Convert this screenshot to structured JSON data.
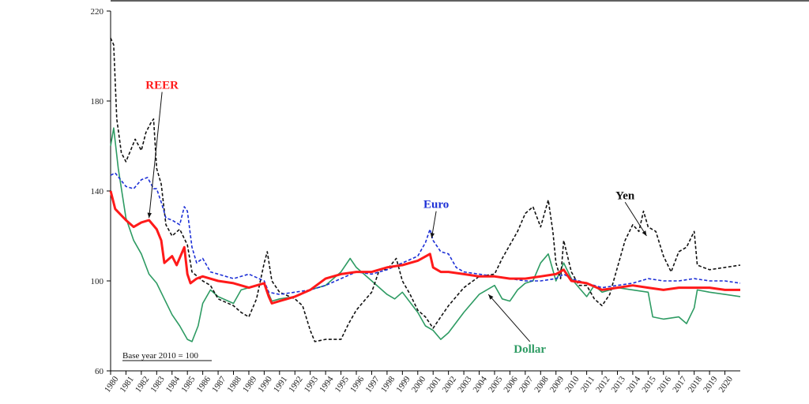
{
  "chart_data": {
    "type": "line",
    "ylim": [
      60,
      220
    ],
    "yticks": [
      60,
      100,
      140,
      180,
      220
    ],
    "xlim": [
      1980,
      2021
    ],
    "xticks": [
      "1980",
      "1981",
      "1982",
      "1983",
      "1984",
      "1985",
      "1986",
      "1987",
      "1988",
      "1989",
      "1990",
      "1991",
      "1992",
      "1993",
      "1994",
      "1995",
      "1996",
      "1997",
      "1998",
      "1999",
      "2000",
      "2001",
      "2002",
      "2003",
      "2004",
      "2005",
      "2006",
      "2007",
      "2008",
      "2009",
      "2010",
      "2011",
      "2012",
      "2013",
      "2014",
      "2015",
      "2016",
      "2017",
      "2018",
      "2019",
      "2020"
    ],
    "note": "Base year  2010 = 100",
    "series": [
      {
        "name": "REER",
        "color": "#ff1a1a",
        "style": "solid",
        "points": [
          [
            1980,
            140
          ],
          [
            1980.3,
            132
          ],
          [
            1981,
            127
          ],
          [
            1981.5,
            124
          ],
          [
            1982,
            126
          ],
          [
            1982.5,
            127
          ],
          [
            1983,
            123
          ],
          [
            1983.3,
            118
          ],
          [
            1983.5,
            108
          ],
          [
            1984,
            111
          ],
          [
            1984.3,
            107
          ],
          [
            1984.8,
            115
          ],
          [
            1985,
            103
          ],
          [
            1985.2,
            99
          ],
          [
            1985.6,
            101
          ],
          [
            1986,
            102
          ],
          [
            1987,
            100
          ],
          [
            1988,
            99
          ],
          [
            1989,
            97
          ],
          [
            1990,
            99
          ],
          [
            1990.3,
            93
          ],
          [
            1990.5,
            90
          ],
          [
            1991,
            91
          ],
          [
            1992,
            93
          ],
          [
            1993,
            96
          ],
          [
            1994,
            101
          ],
          [
            1995,
            103
          ],
          [
            1996,
            104
          ],
          [
            1997,
            104
          ],
          [
            1998,
            106
          ],
          [
            1999,
            107
          ],
          [
            2000,
            109
          ],
          [
            2000.8,
            112
          ],
          [
            2001,
            106
          ],
          [
            2001.5,
            104
          ],
          [
            2002,
            104
          ],
          [
            2003,
            103
          ],
          [
            2004,
            102
          ],
          [
            2005,
            102
          ],
          [
            2006,
            101
          ],
          [
            2007,
            101
          ],
          [
            2008,
            102
          ],
          [
            2009,
            103
          ],
          [
            2009.5,
            105
          ],
          [
            2010,
            100
          ],
          [
            2011,
            99
          ],
          [
            2012,
            96
          ],
          [
            2013,
            97
          ],
          [
            2014,
            98
          ],
          [
            2015,
            97
          ],
          [
            2016,
            96
          ],
          [
            2017,
            97
          ],
          [
            2018,
            97
          ],
          [
            2019,
            97
          ],
          [
            2020,
            96
          ],
          [
            2021,
            96
          ]
        ]
      },
      {
        "name": "Euro",
        "color": "#1c2fd6",
        "style": "dashed",
        "points": [
          [
            1980,
            147
          ],
          [
            1980.3,
            148
          ],
          [
            1981,
            142
          ],
          [
            1981.5,
            141
          ],
          [
            1982,
            145
          ],
          [
            1982.4,
            146
          ],
          [
            1982.8,
            141
          ],
          [
            1983,
            141
          ],
          [
            1983.3,
            135
          ],
          [
            1983.6,
            128
          ],
          [
            1984,
            127
          ],
          [
            1984.5,
            125
          ],
          [
            1984.8,
            133
          ],
          [
            1985,
            131
          ],
          [
            1985.3,
            115
          ],
          [
            1985.6,
            108
          ],
          [
            1986,
            110
          ],
          [
            1986.5,
            104
          ],
          [
            1987,
            103
          ],
          [
            1988,
            101
          ],
          [
            1989,
            103
          ],
          [
            1990,
            100
          ],
          [
            1990.3,
            95
          ],
          [
            1991,
            94
          ],
          [
            1992,
            95
          ],
          [
            1993,
            96
          ],
          [
            1994,
            98
          ],
          [
            1995,
            101
          ],
          [
            1996,
            104
          ],
          [
            1997,
            103
          ],
          [
            1998,
            105
          ],
          [
            1999,
            108
          ],
          [
            2000,
            111
          ],
          [
            2000.5,
            117
          ],
          [
            2000.8,
            123
          ],
          [
            2001,
            118
          ],
          [
            2001.5,
            113
          ],
          [
            2002,
            112
          ],
          [
            2002.5,
            106
          ],
          [
            2003,
            104
          ],
          [
            2004,
            103
          ],
          [
            2005,
            102
          ],
          [
            2006,
            101
          ],
          [
            2007,
            100
          ],
          [
            2008,
            100
          ],
          [
            2009,
            101
          ],
          [
            2009.5,
            103
          ],
          [
            2010,
            101
          ],
          [
            2011,
            99
          ],
          [
            2012,
            97
          ],
          [
            2013,
            98
          ],
          [
            2014,
            99
          ],
          [
            2015,
            101
          ],
          [
            2016,
            100
          ],
          [
            2017,
            100
          ],
          [
            2018,
            101
          ],
          [
            2019,
            100
          ],
          [
            2020,
            100
          ],
          [
            2021,
            99
          ]
        ]
      },
      {
        "name": "Dollar",
        "color": "#2e9b63",
        "style": "solid",
        "points": [
          [
            1980,
            160
          ],
          [
            1980.2,
            168
          ],
          [
            1980.5,
            150
          ],
          [
            1981,
            128
          ],
          [
            1981.5,
            118
          ],
          [
            1982,
            112
          ],
          [
            1982.5,
            103
          ],
          [
            1983,
            99
          ],
          [
            1983.5,
            92
          ],
          [
            1984,
            85
          ],
          [
            1984.5,
            80
          ],
          [
            1985,
            74
          ],
          [
            1985.3,
            73
          ],
          [
            1985.7,
            80
          ],
          [
            1986,
            90
          ],
          [
            1986.5,
            96
          ],
          [
            1987,
            93
          ],
          [
            1988,
            90
          ],
          [
            1988.5,
            96
          ],
          [
            1989,
            97
          ],
          [
            1990,
            99
          ],
          [
            1990.5,
            91
          ],
          [
            1991,
            92
          ],
          [
            1992,
            93
          ],
          [
            1993,
            96
          ],
          [
            1994,
            98
          ],
          [
            1995,
            104
          ],
          [
            1995.6,
            110
          ],
          [
            1996,
            106
          ],
          [
            1996.5,
            103
          ],
          [
            1997,
            100
          ],
          [
            1998,
            94
          ],
          [
            1998.5,
            92
          ],
          [
            1999,
            95
          ],
          [
            2000,
            86
          ],
          [
            2000.5,
            80
          ],
          [
            2001,
            78
          ],
          [
            2001.5,
            74
          ],
          [
            2002,
            77
          ],
          [
            2003,
            86
          ],
          [
            2004,
            94
          ],
          [
            2005,
            98
          ],
          [
            2005.5,
            92
          ],
          [
            2006,
            91
          ],
          [
            2006.5,
            96
          ],
          [
            2007,
            99
          ],
          [
            2007.5,
            100
          ],
          [
            2008,
            108
          ],
          [
            2008.5,
            112
          ],
          [
            2009,
            100
          ],
          [
            2009.5,
            108
          ],
          [
            2010,
            101
          ],
          [
            2010.5,
            97
          ],
          [
            2011,
            93
          ],
          [
            2011.5,
            98
          ],
          [
            2012,
            95
          ],
          [
            2013,
            97
          ],
          [
            2014,
            96
          ],
          [
            2015,
            95
          ],
          [
            2015.3,
            84
          ],
          [
            2016,
            83
          ],
          [
            2017,
            84
          ],
          [
            2017.5,
            81
          ],
          [
            2018,
            88
          ],
          [
            2018.2,
            96
          ],
          [
            2019,
            95
          ],
          [
            2020,
            94
          ],
          [
            2021,
            93
          ]
        ]
      },
      {
        "name": "Yen",
        "color": "#111111",
        "style": "dashed",
        "points": [
          [
            1980,
            208
          ],
          [
            1980.2,
            205
          ],
          [
            1980.4,
            172
          ],
          [
            1980.7,
            157
          ],
          [
            1981,
            153
          ],
          [
            1981.3,
            158
          ],
          [
            1981.6,
            163
          ],
          [
            1982,
            158
          ],
          [
            1982.3,
            166
          ],
          [
            1982.6,
            170
          ],
          [
            1982.8,
            172
          ],
          [
            1983,
            150
          ],
          [
            1983.3,
            143
          ],
          [
            1983.6,
            125
          ],
          [
            1984,
            120
          ],
          [
            1984.5,
            123
          ],
          [
            1985,
            116
          ],
          [
            1985.3,
            104
          ],
          [
            1986,
            100
          ],
          [
            1986.5,
            98
          ],
          [
            1987,
            92
          ],
          [
            1988,
            89
          ],
          [
            1988.5,
            86
          ],
          [
            1989,
            84
          ],
          [
            1989.5,
            92
          ],
          [
            1990,
            108
          ],
          [
            1990.2,
            113
          ],
          [
            1990.5,
            100
          ],
          [
            1991,
            95
          ],
          [
            1992,
            92
          ],
          [
            1992.5,
            89
          ],
          [
            1993,
            78
          ],
          [
            1993.3,
            73
          ],
          [
            1994,
            74
          ],
          [
            1995,
            74
          ],
          [
            1995.5,
            81
          ],
          [
            1996,
            87
          ],
          [
            1996.5,
            91
          ],
          [
            1997,
            95
          ],
          [
            1997.5,
            105
          ],
          [
            1998,
            105
          ],
          [
            1998.6,
            110
          ],
          [
            1999,
            100
          ],
          [
            1999.5,
            94
          ],
          [
            2000,
            87
          ],
          [
            2000.5,
            84
          ],
          [
            2001,
            79
          ],
          [
            2001.5,
            84
          ],
          [
            2002,
            89
          ],
          [
            2003,
            97
          ],
          [
            2004,
            102
          ],
          [
            2005,
            103
          ],
          [
            2005.5,
            110
          ],
          [
            2006,
            116
          ],
          [
            2006.5,
            122
          ],
          [
            2007,
            130
          ],
          [
            2007.5,
            133
          ],
          [
            2008,
            124
          ],
          [
            2008.5,
            136
          ],
          [
            2008.8,
            122
          ],
          [
            2009,
            108
          ],
          [
            2009.3,
            101
          ],
          [
            2009.5,
            118
          ],
          [
            2010,
            104
          ],
          [
            2010.5,
            98
          ],
          [
            2011,
            98
          ],
          [
            2011.5,
            92
          ],
          [
            2012,
            89
          ],
          [
            2012.5,
            94
          ],
          [
            2013,
            106
          ],
          [
            2013.5,
            118
          ],
          [
            2014,
            125
          ],
          [
            2014.4,
            122
          ],
          [
            2014.7,
            131
          ],
          [
            2015,
            124
          ],
          [
            2015.5,
            122
          ],
          [
            2016,
            111
          ],
          [
            2016.5,
            104
          ],
          [
            2017,
            113
          ],
          [
            2017.5,
            115
          ],
          [
            2018,
            122
          ],
          [
            2018.2,
            107
          ],
          [
            2019,
            105
          ],
          [
            2020,
            106
          ],
          [
            2021,
            107
          ]
        ]
      }
    ],
    "annotations": [
      {
        "text": "REER",
        "color": "#ff1a1a",
        "from": [
          1983.35,
          184
        ],
        "to": [
          1982.5,
          128
        ]
      },
      {
        "text": "Euro",
        "color": "#1c2fd6",
        "from": [
          2001.2,
          131
        ],
        "to": [
          2000.9,
          119
        ]
      },
      {
        "text": "Yen",
        "color": "#111111",
        "from": [
          2013.5,
          135
        ],
        "to": [
          2014.9,
          120
        ]
      },
      {
        "text": "Dollar",
        "color": "#2e9b63",
        "from": [
          2007.3,
          73
        ],
        "to": [
          2004.6,
          94
        ]
      }
    ]
  }
}
